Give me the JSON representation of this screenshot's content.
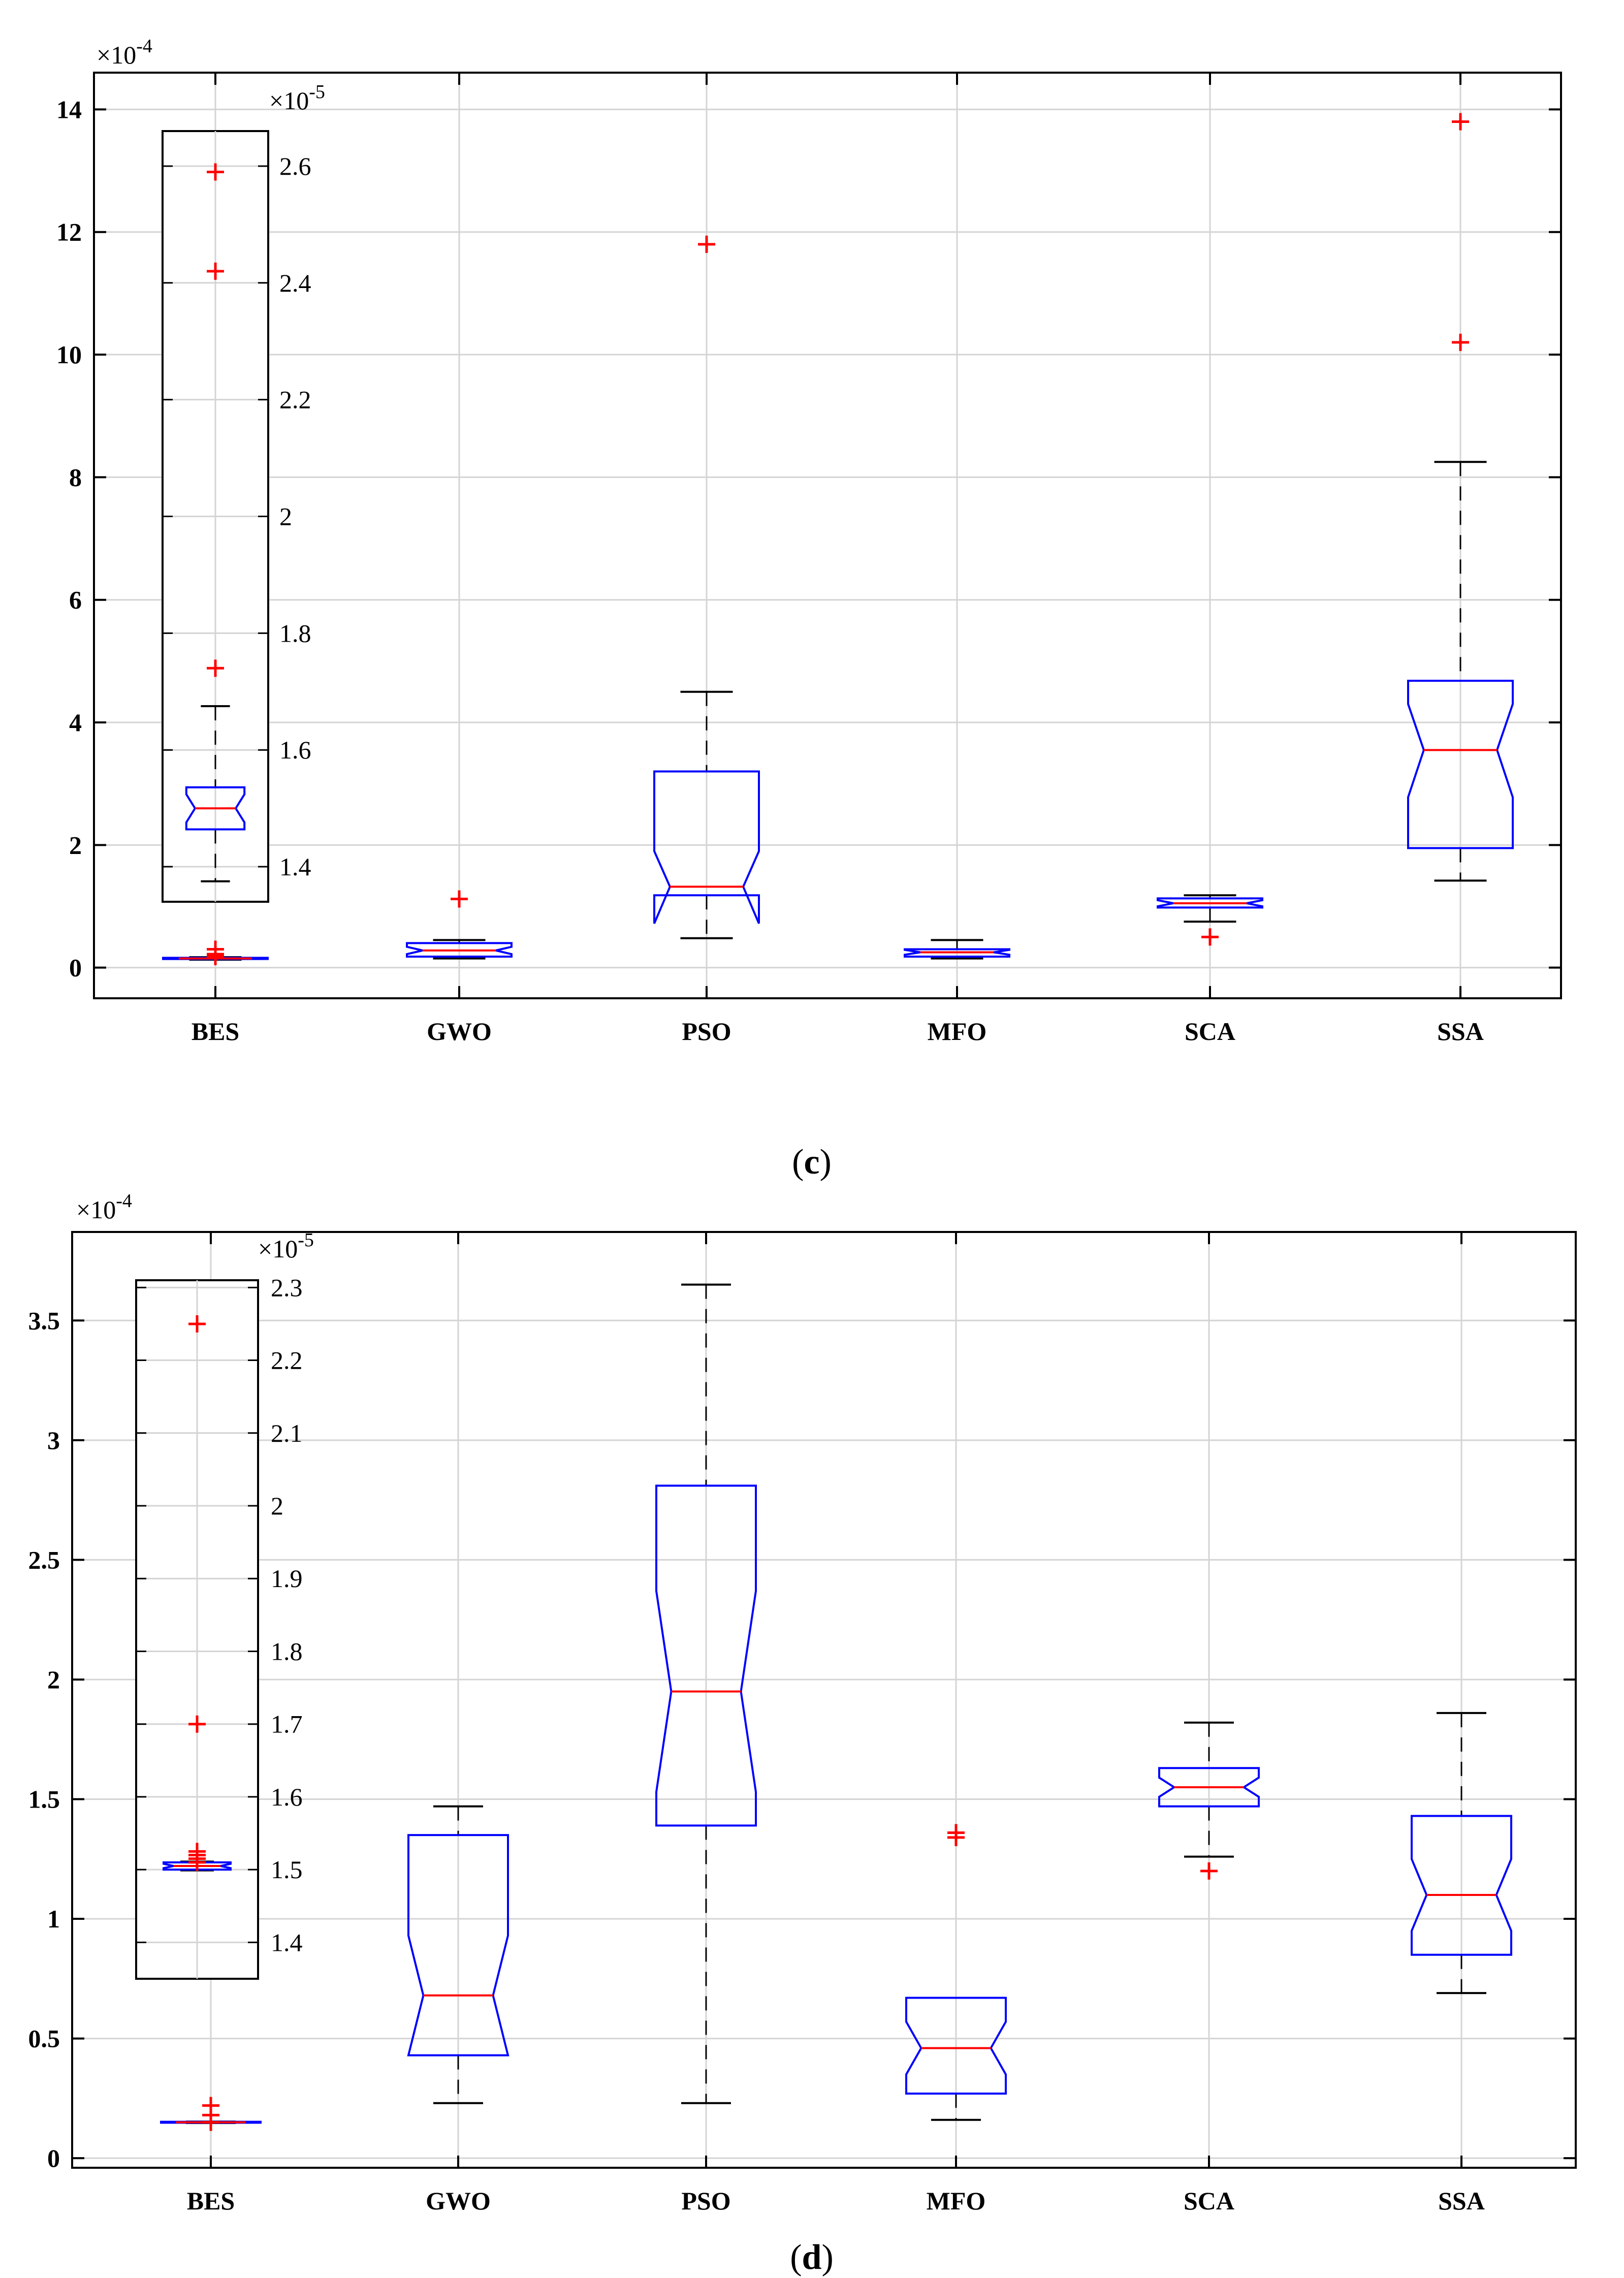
{
  "chart_data": [
    {
      "type": "box",
      "caption_open": "(",
      "caption_letter": "c",
      "caption_close": ")",
      "exponent_label": "×10",
      "exponent": "-4",
      "ylim": [
        -0.5,
        14.6
      ],
      "yticks": [
        0,
        2,
        4,
        6,
        8,
        10,
        12,
        14
      ],
      "categories": [
        "BES",
        "GWO",
        "PSO",
        "MFO",
        "SCA",
        "SSA"
      ],
      "boxes": [
        {
          "name": "BES",
          "q1": 0.14,
          "median": 0.15,
          "q3": 0.16,
          "notch_lo": 0.148,
          "notch_hi": 0.152,
          "whisker_lo": 0.13,
          "whisker_hi": 0.17,
          "outliers": [
            0.3,
            0.22,
            0.18
          ]
        },
        {
          "name": "GWO",
          "q1": 0.18,
          "median": 0.28,
          "q3": 0.4,
          "notch_lo": 0.22,
          "notch_hi": 0.34,
          "whisker_lo": 0.15,
          "whisker_hi": 0.45,
          "outliers": [
            1.12
          ]
        },
        {
          "name": "PSO",
          "q1": 1.18,
          "median": 1.32,
          "q3": 3.2,
          "notch_lo": 0.72,
          "notch_hi": 1.9,
          "whisker_lo": 0.48,
          "whisker_hi": 4.5,
          "outliers": [
            11.8
          ]
        },
        {
          "name": "MFO",
          "q1": 0.18,
          "median": 0.25,
          "q3": 0.3,
          "notch_lo": 0.21,
          "notch_hi": 0.29,
          "whisker_lo": 0.15,
          "whisker_hi": 0.45,
          "outliers": []
        },
        {
          "name": "SCA",
          "q1": 0.98,
          "median": 1.05,
          "q3": 1.13,
          "notch_lo": 1.0,
          "notch_hi": 1.1,
          "whisker_lo": 0.75,
          "whisker_hi": 1.18,
          "outliers": [
            0.5
          ]
        },
        {
          "name": "SSA",
          "q1": 1.95,
          "median": 3.55,
          "q3": 4.68,
          "notch_lo": 2.78,
          "notch_hi": 4.3,
          "whisker_lo": 1.42,
          "whisker_hi": 8.25,
          "outliers": [
            10.2,
            13.8
          ]
        }
      ],
      "inset": {
        "exponent_label": "×10",
        "exponent": "-5",
        "ylim": [
          1.34,
          2.66
        ],
        "yticks": [
          1.4,
          1.6,
          1.8,
          2,
          2.2,
          2.4,
          2.6
        ],
        "yticklabels": [
          "1.4",
          "1.6",
          "1.8",
          "2",
          "2.2",
          "2.4",
          "2.6"
        ],
        "box": {
          "q1": 1.464,
          "median": 1.5,
          "q3": 1.536,
          "notch_lo": 1.476,
          "notch_hi": 1.524,
          "whisker_lo": 1.375,
          "whisker_hi": 1.675,
          "outliers": [
            1.74,
            2.42,
            2.59
          ]
        }
      }
    },
    {
      "type": "box",
      "caption_open": "(",
      "caption_letter": "d",
      "caption_close": ")",
      "exponent_label": "×10",
      "exponent": "-4",
      "ylim": [
        -0.04,
        3.87
      ],
      "yticks": [
        0,
        0.5,
        1,
        1.5,
        2,
        2.5,
        3,
        3.5
      ],
      "categories": [
        "BES",
        "GWO",
        "PSO",
        "MFO",
        "SCA",
        "SSA"
      ],
      "boxes": [
        {
          "name": "BES",
          "q1": 0.148,
          "median": 0.15,
          "q3": 0.152,
          "notch_lo": 0.149,
          "notch_hi": 0.151,
          "whisker_lo": 0.147,
          "whisker_hi": 0.153,
          "outliers": [
            0.22,
            0.18,
            0.15
          ]
        },
        {
          "name": "GWO",
          "q1": 0.43,
          "median": 0.68,
          "q3": 1.35,
          "notch_lo": 0.43,
          "notch_hi": 0.93,
          "whisker_lo": 0.23,
          "whisker_hi": 1.47,
          "outliers": []
        },
        {
          "name": "PSO",
          "q1": 1.39,
          "median": 1.95,
          "q3": 2.81,
          "notch_lo": 1.53,
          "notch_hi": 2.37,
          "whisker_lo": 0.23,
          "whisker_hi": 3.65,
          "outliers": []
        },
        {
          "name": "MFO",
          "q1": 0.27,
          "median": 0.46,
          "q3": 0.67,
          "notch_lo": 0.35,
          "notch_hi": 0.57,
          "whisker_lo": 0.16,
          "whisker_hi": 0.67,
          "outliers": [
            1.36,
            1.34
          ]
        },
        {
          "name": "SCA",
          "q1": 1.47,
          "median": 1.55,
          "q3": 1.63,
          "notch_lo": 1.51,
          "notch_hi": 1.59,
          "whisker_lo": 1.26,
          "whisker_hi": 1.82,
          "outliers": [
            1.2
          ]
        },
        {
          "name": "SSA",
          "q1": 0.85,
          "median": 1.1,
          "q3": 1.43,
          "notch_lo": 0.95,
          "notch_hi": 1.25,
          "whisker_lo": 0.69,
          "whisker_hi": 1.86,
          "outliers": []
        }
      ],
      "inset": {
        "exponent_label": "×10",
        "exponent": "-5",
        "ylim": [
          1.35,
          2.31
        ],
        "yticks": [
          1.4,
          1.5,
          1.6,
          1.7,
          1.8,
          1.9,
          2.0,
          2.1,
          2.2,
          2.3
        ],
        "yticklabels": [
          "1.4",
          "1.5",
          "1.6",
          "1.7",
          "1.8",
          "1.9",
          "2",
          "2.1",
          "2.2",
          "2.3"
        ],
        "box": {
          "q1": 1.5,
          "median": 1.505,
          "q3": 1.51,
          "notch_lo": 1.502,
          "notch_hi": 1.508,
          "whisker_lo": 1.499,
          "whisker_hi": 1.511,
          "outliers": [
            1.51,
            1.515,
            1.52,
            1.525,
            1.7,
            2.25
          ]
        }
      }
    }
  ]
}
